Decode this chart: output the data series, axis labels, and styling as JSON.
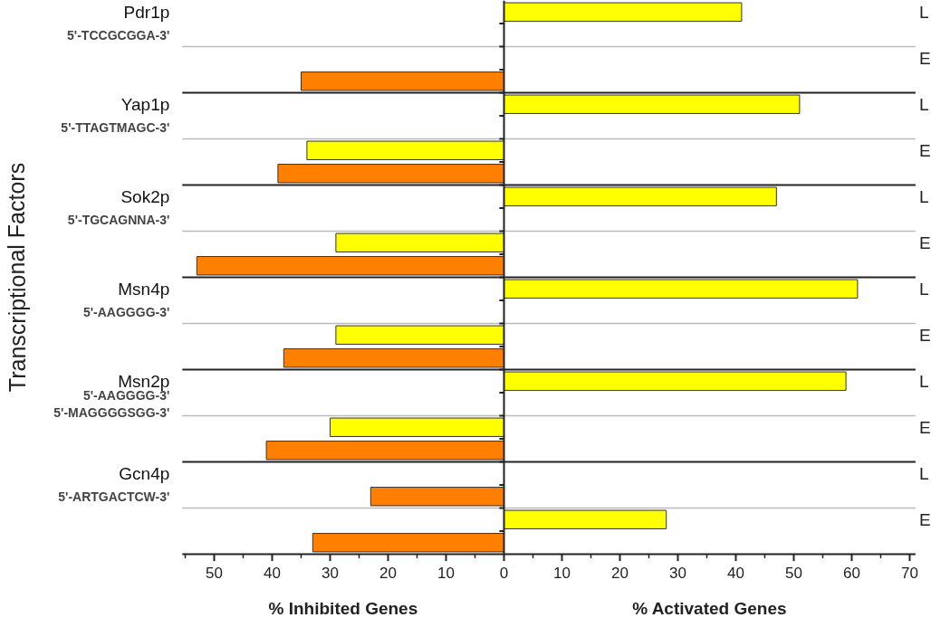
{
  "chart_data": {
    "type": "bar",
    "orientation": "horizontal",
    "ylabel": "Transcriptional Factors",
    "xlabel": [
      "% Inhibited Genes",
      "% Activated Genes"
    ],
    "categories": [
      "Pdr1p",
      "5'-TCCGCGGA-3'",
      null,
      null,
      "Yap1p",
      "5'-TTAGTMAGC-3'",
      null,
      null,
      "Sok2p",
      "5'-TGCAGNNA-3'",
      null,
      null,
      "Msn4p",
      "5'-AAGGGG-3'",
      null,
      null,
      "Msn2p",
      "5'-AAGGGG-3'\n5'-MAGGGGSGG-3'",
      null,
      null,
      "Gcn4p",
      "5'-ARTGACTCW-3'",
      null,
      null
    ],
    "series": [
      {
        "color": "#ffff00",
        "values": [
          41,
          null,
          null,
          null,
          51,
          null,
          -34,
          null,
          47,
          null,
          -29,
          null,
          61,
          null,
          -29,
          null,
          59,
          null,
          -30,
          null,
          null,
          null,
          28,
          null
        ]
      },
      {
        "color": "#ff8000",
        "values": [
          null,
          null,
          null,
          -35,
          null,
          null,
          null,
          -39,
          null,
          null,
          null,
          -53,
          null,
          null,
          null,
          -38,
          null,
          null,
          null,
          -41,
          null,
          -23,
          null,
          -33
        ]
      }
    ],
    "xlim": [
      -55.5,
      71
    ],
    "xticks": [
      {
        "value": -50,
        "label": "50"
      },
      {
        "value": -40,
        "label": "40"
      },
      {
        "value": -30,
        "label": "30"
      },
      {
        "value": -20,
        "label": "20"
      },
      {
        "value": -10,
        "label": "10"
      },
      0,
      10,
      20,
      30,
      40,
      50,
      60,
      70
    ],
    "annotations": [
      "L",
      "E",
      "L",
      "E",
      "L",
      "E",
      "L",
      "E",
      "L",
      "E",
      "L",
      "E"
    ],
    "legend": false
  }
}
